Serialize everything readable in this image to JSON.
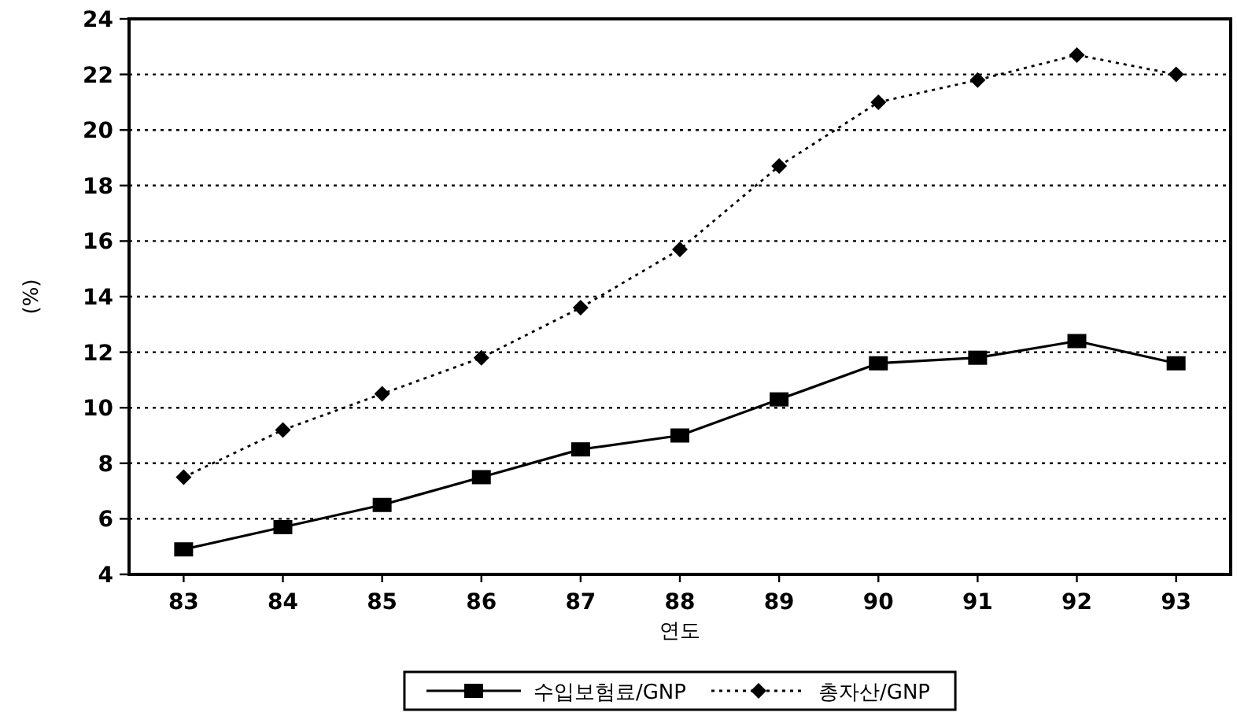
{
  "chart_data": {
    "type": "line",
    "xlabel": "연도",
    "ylabel": "(%)",
    "categories": [
      "83",
      "84",
      "85",
      "86",
      "87",
      "88",
      "89",
      "90",
      "91",
      "92",
      "93"
    ],
    "series": [
      {
        "name": "수입보험료/GNP",
        "color": "#000000",
        "marker": "square",
        "line_style": "solid",
        "values": [
          4.9,
          5.7,
          6.5,
          7.5,
          8.5,
          9.0,
          10.3,
          11.6,
          11.8,
          12.4,
          11.6
        ]
      },
      {
        "name": "총자산/GNP",
        "color": "#000000",
        "marker": "diamond",
        "line_style": "dotted",
        "values": [
          7.5,
          9.2,
          10.5,
          11.8,
          13.6,
          15.7,
          18.7,
          21.0,
          21.8,
          22.7,
          22.0
        ]
      }
    ],
    "ylim": [
      4,
      24
    ],
    "yticks": [
      4,
      6,
      8,
      10,
      12,
      14,
      16,
      18,
      20,
      22,
      24
    ],
    "grid": "y",
    "legend": "bottom"
  }
}
